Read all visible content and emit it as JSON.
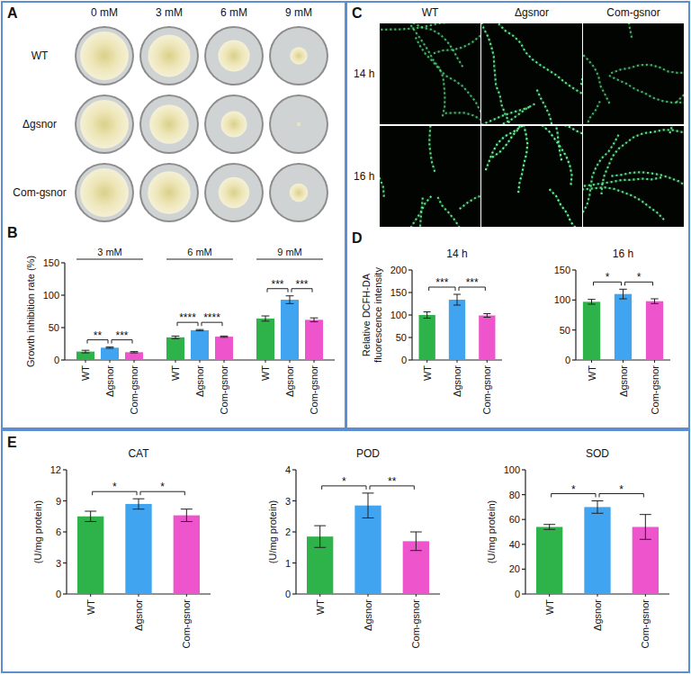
{
  "figure": {
    "panel_letters": [
      "A",
      "B",
      "C",
      "D",
      "E"
    ]
  },
  "plates": {
    "columns": [
      "0 mM",
      "3 mM",
      "6 mM",
      "9 mM"
    ],
    "rows": [
      "WT",
      "Δgsnor",
      "Com-gsnor"
    ]
  },
  "micrographs": {
    "columns": [
      "WT",
      "Δgsnor",
      "Com-gsnor"
    ],
    "rows": [
      "14 h",
      "16 h"
    ]
  },
  "chart_data": [
    {
      "type": "bar",
      "y_label": "Growth inhibition rate (%)",
      "categories": [
        "3 mM",
        "6 mM",
        "9 mM"
      ],
      "series": [
        {
          "name": "WT",
          "color": "#2eb24a",
          "values": [
            13,
            35,
            64
          ],
          "errors": [
            2,
            2,
            4
          ]
        },
        {
          "name": "Δgsnor",
          "color": "#40a4f0",
          "values": [
            19,
            46,
            93
          ],
          "errors": [
            1,
            1,
            6
          ]
        },
        {
          "name": "Com-gsnor",
          "color": "#ee55cc",
          "values": [
            12,
            36,
            62
          ],
          "errors": [
            1,
            1,
            3
          ]
        }
      ],
      "ylim": [
        0,
        150
      ],
      "yticks": [
        0,
        50,
        100,
        150
      ],
      "significance": [
        {
          "category": "3 mM",
          "pair": [
            "WT",
            "Δgsnor"
          ],
          "label": "**"
        },
        {
          "category": "3 mM",
          "pair": [
            "Δgsnor",
            "Com-gsnor"
          ],
          "label": "***"
        },
        {
          "category": "6 mM",
          "pair": [
            "WT",
            "Δgsnor"
          ],
          "label": "****"
        },
        {
          "category": "6 mM",
          "pair": [
            "Δgsnor",
            "Com-gsnor"
          ],
          "label": "****"
        },
        {
          "category": "9 mM",
          "pair": [
            "WT",
            "Δgsnor"
          ],
          "label": "***"
        },
        {
          "category": "9 mM",
          "pair": [
            "Δgsnor",
            "Com-gsnor"
          ],
          "label": "***"
        }
      ]
    },
    {
      "type": "bar",
      "title": "14 h",
      "y_label": "Relative DCFH-DA fluorescence intensity",
      "categories": [
        "WT",
        "Δgsnor",
        "Com-gsnor"
      ],
      "values": [
        100,
        134,
        99
      ],
      "errors": [
        7,
        12,
        4
      ],
      "colors": [
        "#2eb24a",
        "#40a4f0",
        "#ee55cc"
      ],
      "ylim": [
        0,
        200
      ],
      "yticks": [
        0,
        50,
        100,
        150,
        200
      ],
      "significance": [
        {
          "pair": [
            "WT",
            "Δgsnor"
          ],
          "label": "***"
        },
        {
          "pair": [
            "Δgsnor",
            "Com-gsnor"
          ],
          "label": "***"
        }
      ]
    },
    {
      "type": "bar",
      "title": "16 h",
      "categories": [
        "WT",
        "Δgsnor",
        "Com-gsnor"
      ],
      "values": [
        97,
        110,
        98
      ],
      "errors": [
        4,
        8,
        4
      ],
      "colors": [
        "#2eb24a",
        "#40a4f0",
        "#ee55cc"
      ],
      "ylim": [
        0,
        150
      ],
      "yticks": [
        0,
        50,
        100,
        150
      ],
      "significance": [
        {
          "pair": [
            "WT",
            "Δgsnor"
          ],
          "label": "*"
        },
        {
          "pair": [
            "Δgsnor",
            "Com-gsnor"
          ],
          "label": "*"
        }
      ]
    },
    {
      "type": "bar",
      "title": "CAT",
      "y_label": "(U/mg protein)",
      "categories": [
        "WT",
        "Δgsnor",
        "Com-gsnor"
      ],
      "values": [
        7.5,
        8.7,
        7.6
      ],
      "errors": [
        0.5,
        0.5,
        0.6
      ],
      "colors": [
        "#2eb24a",
        "#40a4f0",
        "#ee55cc"
      ],
      "ylim": [
        0,
        12
      ],
      "yticks": [
        0,
        3,
        6,
        9,
        12
      ],
      "significance": [
        {
          "pair": [
            "WT",
            "Δgsnor"
          ],
          "label": "*"
        },
        {
          "pair": [
            "Δgsnor",
            "Com-gsnor"
          ],
          "label": "*"
        }
      ]
    },
    {
      "type": "bar",
      "title": "POD",
      "y_label": "(U/mg protein)",
      "categories": [
        "WT",
        "Δgsnor",
        "Com-gsnor"
      ],
      "values": [
        1.85,
        2.85,
        1.7
      ],
      "errors": [
        0.35,
        0.4,
        0.3
      ],
      "colors": [
        "#2eb24a",
        "#40a4f0",
        "#ee55cc"
      ],
      "ylim": [
        0,
        4
      ],
      "yticks": [
        0,
        1,
        2,
        3,
        4
      ],
      "significance": [
        {
          "pair": [
            "WT",
            "Δgsnor"
          ],
          "label": "*"
        },
        {
          "pair": [
            "Δgsnor",
            "Com-gsnor"
          ],
          "label": "**"
        }
      ]
    },
    {
      "type": "bar",
      "title": "SOD",
      "y_label": "(U/mg protein)",
      "categories": [
        "WT",
        "Δgsnor",
        "Com-gsnor"
      ],
      "values": [
        54,
        70,
        54
      ],
      "errors": [
        2,
        5,
        10
      ],
      "colors": [
        "#2eb24a",
        "#40a4f0",
        "#ee55cc"
      ],
      "ylim": [
        0,
        100
      ],
      "yticks": [
        0,
        20,
        40,
        60,
        80,
        100
      ],
      "significance": [
        {
          "pair": [
            "WT",
            "Δgsnor"
          ],
          "label": "*"
        },
        {
          "pair": [
            "Δgsnor",
            "Com-gsnor"
          ],
          "label": "*"
        }
      ]
    }
  ]
}
